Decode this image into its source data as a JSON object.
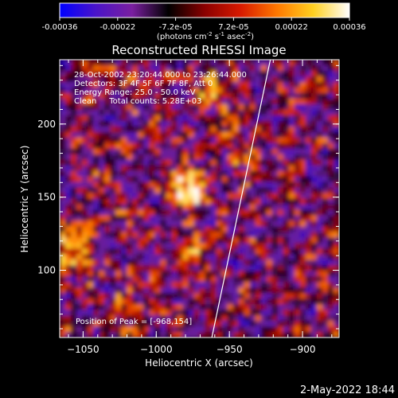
{
  "colorbar": {
    "ticks": [
      "-0.00036",
      "-0.00022",
      "-7.2e-05",
      "7.2e-05",
      "0.00022",
      "0.00036"
    ],
    "units_main": "(photons cm",
    "units_exp1": "-2",
    "units_mid": " s",
    "units_exp2": "-1",
    "units_end": " asec",
    "units_exp3": "-2",
    "units_close": ")",
    "stops": [
      "#0000ff",
      "#4a14c8",
      "#7a1fa0",
      "#000000",
      "#8a0000",
      "#d81a00",
      "#ff7800",
      "#ffd020",
      "#ffffff"
    ]
  },
  "chart_data": {
    "type": "heatmap",
    "title": "Reconstructed RHESSI Image",
    "xlabel": "Heliocentric X (arcsec)",
    "ylabel": "Heliocentric Y (arcsec)",
    "xlim": [
      -1066,
      -875
    ],
    "ylim": [
      54,
      244
    ],
    "xticks": [
      -1050,
      -1000,
      -950,
      -900
    ],
    "xtick_labels": [
      "−1050",
      "−1000",
      "−950",
      "−900"
    ],
    "yticks": [
      100,
      150,
      200
    ],
    "ytick_labels": [
      "100",
      "150",
      "200"
    ],
    "colormap": "blue-purple-black-red-yellow-white",
    "value_range": [
      -0.00036,
      0.00036
    ],
    "peak": {
      "x": -968,
      "y": 154
    },
    "annotations": {
      "line1": "28-Oct-2002 23:20:44.000 to 23:26:44.000",
      "line2": "Detectors: 3F 4F 5F 6F 7F 8F, Att 0",
      "line3": "Energy Range: 25.0 - 50.0 keV",
      "line4": "Clean     Total counts: 5.28E+03",
      "peak_label": "Position of Peak = [-968,154]"
    },
    "limb_line": [
      [
        -962,
        54
      ],
      [
        -922,
        244
      ]
    ]
  },
  "footer": {
    "date": "2-May-2022 18:44"
  }
}
